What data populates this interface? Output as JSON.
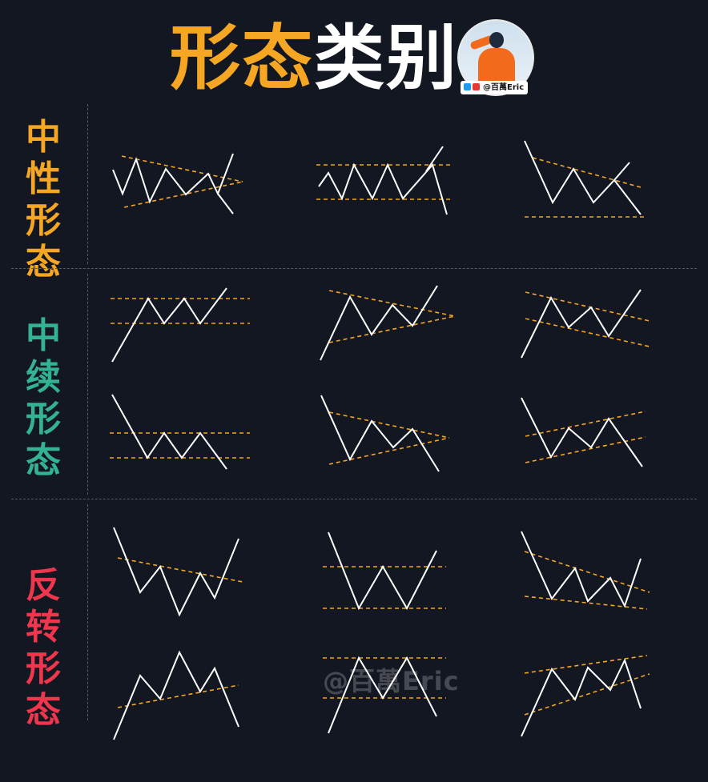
{
  "title": {
    "part1": "形态",
    "part2": "类别"
  },
  "badge": {
    "handle": "@百萬Eric"
  },
  "watermark": "@百萬Eric",
  "categories": [
    {
      "label": "中性形态",
      "color": "#f5a623"
    },
    {
      "label": "中续形态",
      "color": "#33b394"
    },
    {
      "label": "反转形态",
      "color": "#f0364d"
    }
  ],
  "colors": {
    "background": "#131722",
    "line": "#ffffff",
    "guide": "#f5a623",
    "divider": "#555a66"
  }
}
